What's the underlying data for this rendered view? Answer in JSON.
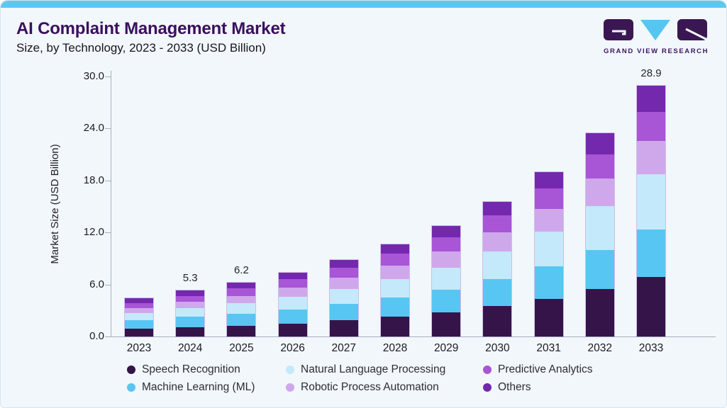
{
  "header": {
    "title": "AI Complaint Management Market",
    "subtitle": "Size, by Technology, 2023 - 2033 (USD Billion)"
  },
  "brand": {
    "name": "GRAND VIEW RESEARCH"
  },
  "theme": {
    "background": "#F1F7FB",
    "top_bar": "#5BC9EF",
    "title_color": "#3A0F5D",
    "axis_color": "#A8B1BC",
    "logo_purple": "#3A1752",
    "logo_blue": "#56C5F0"
  },
  "chart_data": {
    "type": "bar",
    "stacked": true,
    "title": "AI Complaint Management Market",
    "subtitle": "Size, by Technology, 2023 - 2033 (USD Billion)",
    "xlabel": "",
    "ylabel": "Market Size (USD Billion)",
    "ylim": [
      0,
      30
    ],
    "grid": false,
    "legend_position": "bottom",
    "categories": [
      "2023",
      "2024",
      "2025",
      "2026",
      "2027",
      "2028",
      "2029",
      "2030",
      "2031",
      "2032",
      "2033"
    ],
    "series": [
      {
        "name": "Speech Recognition",
        "color": "#351449",
        "values": [
          0.87,
          1.05,
          1.22,
          1.5,
          1.85,
          2.28,
          2.81,
          3.49,
          4.33,
          5.44,
          6.84
        ]
      },
      {
        "name": "Machine Learning (ML)",
        "color": "#58C6F2",
        "values": [
          1.03,
          1.22,
          1.37,
          1.61,
          1.89,
          2.23,
          2.62,
          3.12,
          3.72,
          4.54,
          5.54
        ]
      },
      {
        "name": "Natural Language Processing",
        "color": "#C4E9FA",
        "values": [
          0.79,
          1.0,
          1.24,
          1.48,
          1.77,
          2.12,
          2.53,
          3.2,
          4.05,
          5.05,
          6.31
        ]
      },
      {
        "name": "Robotic Process Automation",
        "color": "#CFA8EC",
        "values": [
          0.56,
          0.71,
          0.86,
          1.05,
          1.27,
          1.55,
          1.88,
          2.22,
          2.62,
          3.18,
          3.86
        ]
      },
      {
        "name": "Predictive Analytics",
        "color": "#A855D6",
        "values": [
          0.58,
          0.7,
          0.83,
          0.98,
          1.15,
          1.36,
          1.6,
          1.95,
          2.37,
          2.83,
          3.37
        ]
      },
      {
        "name": "Others",
        "color": "#7428AE",
        "values": [
          0.58,
          0.62,
          0.68,
          0.73,
          0.88,
          1.07,
          1.3,
          1.57,
          1.9,
          2.38,
          2.98
        ]
      }
    ],
    "totals": [
      4.4,
      5.3,
      6.2,
      7.3,
      8.8,
      10.6,
      12.7,
      15.5,
      19.0,
      23.4,
      28.9
    ],
    "total_labels": {
      "2024": "5.3",
      "2025": "6.2",
      "2033": "28.9"
    },
    "yticks": [
      {
        "value": 0,
        "label": "0.0"
      },
      {
        "value": 6,
        "label": "6.0"
      },
      {
        "value": 12,
        "label": "12.0"
      },
      {
        "value": 18,
        "label": "18.0"
      },
      {
        "value": 24,
        "label": "24.0"
      },
      {
        "value": 30,
        "label": "30.0"
      }
    ],
    "legend_display_order": [
      "Speech Recognition",
      "Natural Language Processing",
      "Predictive Analytics",
      "Machine Learning (ML)",
      "Robotic Process Automation",
      "Others"
    ]
  }
}
